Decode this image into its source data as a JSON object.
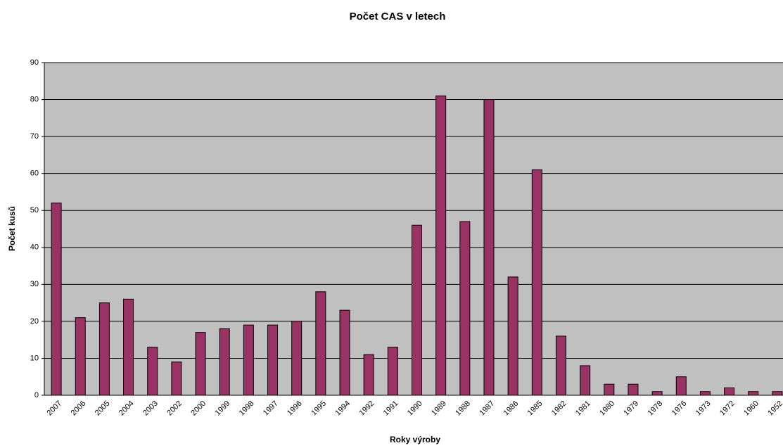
{
  "chart_data": {
    "type": "bar",
    "title": "Počet CAS v letech",
    "xlabel": "Roky výroby",
    "ylabel": "Počet kusů",
    "categories": [
      "2007",
      "2006",
      "2005",
      "2004",
      "2003",
      "2002",
      "2000",
      "1999",
      "1998",
      "1997",
      "1996",
      "1995",
      "1994",
      "1992",
      "1991",
      "1990",
      "1989",
      "1988",
      "1987",
      "1986",
      "1985",
      "1982",
      "1981",
      "1980",
      "1979",
      "1978",
      "1976",
      "1973",
      "1972",
      "1960",
      "1952"
    ],
    "values": [
      52,
      21,
      25,
      26,
      13,
      9,
      17,
      18,
      19,
      19,
      20,
      28,
      23,
      11,
      13,
      46,
      81,
      47,
      80,
      32,
      61,
      16,
      8,
      3,
      3,
      1,
      5,
      1,
      2,
      1,
      1
    ],
    "color": "#993366",
    "ylim": [
      0,
      90
    ],
    "yticks": [
      0,
      10,
      20,
      30,
      40,
      50,
      60,
      70,
      80,
      90
    ],
    "grid": true
  }
}
